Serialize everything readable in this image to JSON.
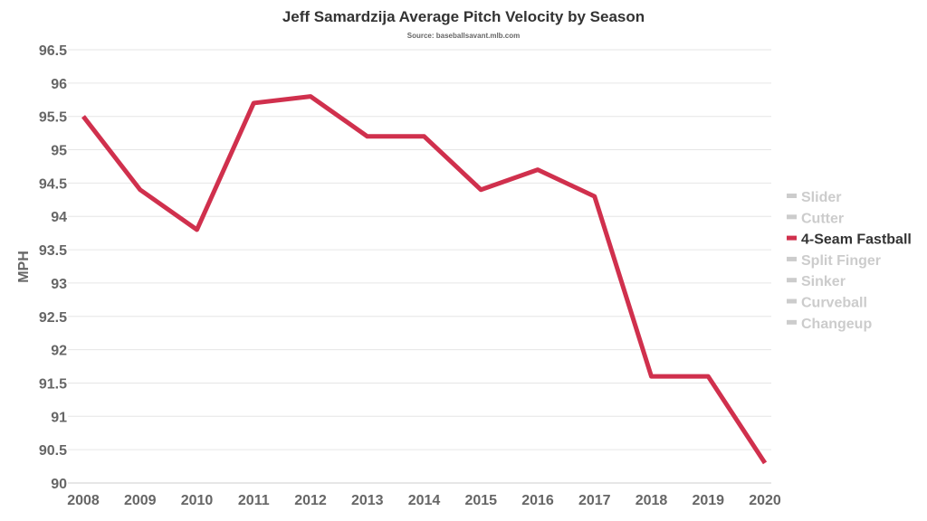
{
  "chart_data": {
    "type": "line",
    "title": "Jeff Samardzija Average Pitch Velocity by Season",
    "subtitle": "Source: baseballsavant.mlb.com",
    "xlabel": "",
    "ylabel": "MPH",
    "x": [
      "2008",
      "2009",
      "2010",
      "2011",
      "2012",
      "2013",
      "2014",
      "2015",
      "2016",
      "2017",
      "2018",
      "2019",
      "2020"
    ],
    "yticks": [
      "90",
      "90.5",
      "91",
      "91.5",
      "92",
      "92.5",
      "93",
      "93.5",
      "94",
      "94.5",
      "95",
      "95.5",
      "96",
      "96.5"
    ],
    "ylim": [
      90,
      96.5
    ],
    "grid": true,
    "legend_position": "right",
    "series": [
      {
        "name": "4-Seam Fastball",
        "color": "#d0304d",
        "active": true,
        "values": [
          95.5,
          94.4,
          93.8,
          95.7,
          95.8,
          95.2,
          95.2,
          94.4,
          94.7,
          94.3,
          91.6,
          91.6,
          90.3
        ]
      }
    ],
    "legend": [
      {
        "name": "Slider",
        "active": false
      },
      {
        "name": "Cutter",
        "active": false
      },
      {
        "name": "4-Seam Fastball",
        "active": true
      },
      {
        "name": "Split Finger",
        "active": false
      },
      {
        "name": "Sinker",
        "active": false
      },
      {
        "name": "Curveball",
        "active": false
      },
      {
        "name": "Changeup",
        "active": false
      }
    ],
    "colors": {
      "active": "#d0304d",
      "inactive": "#cccccc",
      "active_text": "#333333",
      "inactive_text": "#cccccc"
    }
  }
}
